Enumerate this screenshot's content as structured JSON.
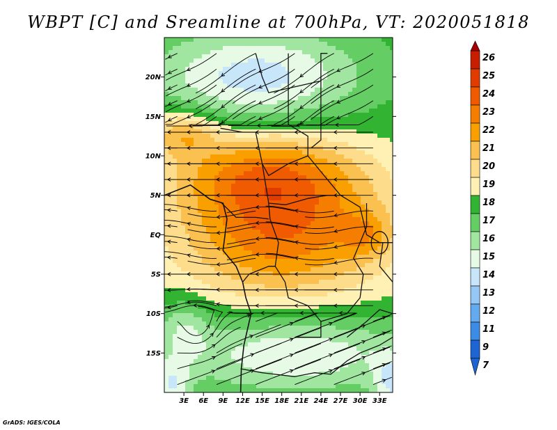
{
  "title": "WBPT [C] and Sreamline at 700hPa, VT: 2020051818",
  "footer": "GrADS: IGES/COLA",
  "map": {
    "lon_range": [
      0,
      35
    ],
    "lat_range": [
      -20,
      25
    ],
    "lat_ticks": [
      {
        "lat": 20,
        "label": "20N"
      },
      {
        "lat": 15,
        "label": "15N"
      },
      {
        "lat": 10,
        "label": "10N"
      },
      {
        "lat": 5,
        "label": "5N"
      },
      {
        "lat": 0,
        "label": "EQ"
      },
      {
        "lat": -5,
        "label": "5S"
      },
      {
        "lat": -10,
        "label": "10S"
      },
      {
        "lat": -15,
        "label": "15S"
      }
    ],
    "lon_ticks": [
      {
        "lon": 3,
        "label": "3E"
      },
      {
        "lon": 6,
        "label": "6E"
      },
      {
        "lon": 9,
        "label": "9E"
      },
      {
        "lon": 12,
        "label": "12E"
      },
      {
        "lon": 15,
        "label": "15E"
      },
      {
        "lon": 18,
        "label": "18E"
      },
      {
        "lon": 21,
        "label": "21E"
      },
      {
        "lon": 24,
        "label": "24E"
      },
      {
        "lon": 27,
        "label": "27E"
      },
      {
        "lon": 30,
        "label": "30E"
      },
      {
        "lon": 33,
        "label": "33E"
      }
    ]
  },
  "colorbar": {
    "labels": [
      "26",
      "25",
      "24",
      "23",
      "22",
      "21",
      "20",
      "19",
      "18",
      "17",
      "16",
      "15",
      "14",
      "13",
      "12",
      "11",
      "9",
      "7"
    ],
    "colors": [
      "#a50000",
      "#c81e00",
      "#e03c00",
      "#f05a00",
      "#f57d00",
      "#f9a000",
      "#fac050",
      "#fddc8c",
      "#fff0b4",
      "#32b432",
      "#64cd64",
      "#a0e6a0",
      "#e6fae6",
      "#c8e6fa",
      "#96c8f5",
      "#64aaf0",
      "#3c8ce6",
      "#1e64d2"
    ]
  }
}
